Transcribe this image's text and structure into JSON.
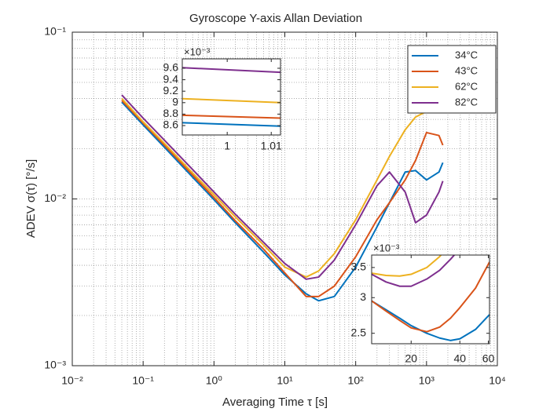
{
  "chart_data": [
    {
      "type": "line",
      "title": "Gyroscope Y-axis Allan Deviation",
      "xlabel": "Averaging Time τ [s]",
      "ylabel": "ADEV σ(τ) [°/s]",
      "xscale": "log",
      "yscale": "log",
      "grid": true,
      "minor_grid": true,
      "legend": "top-right",
      "xlim": [
        0.01,
        10000
      ],
      "ylim": [
        0.001,
        0.1
      ],
      "xticks": [
        {
          "value": 0.01,
          "label": "10⁻²"
        },
        {
          "value": 0.1,
          "label": "10⁻¹"
        },
        {
          "value": 1,
          "label": "10⁰"
        },
        {
          "value": 10,
          "label": "10¹"
        },
        {
          "value": 100,
          "label": "10²"
        },
        {
          "value": 1000,
          "label": "10³"
        },
        {
          "value": 10000,
          "label": "10⁴"
        }
      ],
      "yticks": [
        {
          "value": 0.001,
          "label": "10⁻³"
        },
        {
          "value": 0.01,
          "label": "10⁻²"
        },
        {
          "value": 0.1,
          "label": "10⁻¹"
        }
      ],
      "x": [
        0.05,
        0.1,
        0.2,
        0.5,
        1,
        2,
        5,
        10,
        20,
        30,
        50,
        100,
        200,
        300,
        500,
        700,
        1000,
        1500,
        1700
      ],
      "series": [
        {
          "name": "34°C",
          "color": "#0072BD",
          "values": [
            0.0381,
            0.0278,
            0.0204,
            0.0135,
            0.0099,
            0.0072,
            0.0048,
            0.0035,
            0.0027,
            0.00245,
            0.0026,
            0.0039,
            0.0068,
            0.0095,
            0.0145,
            0.0148,
            0.013,
            0.0145,
            0.0165
          ]
        },
        {
          "name": "43°C",
          "color": "#D95319",
          "values": [
            0.039,
            0.0285,
            0.021,
            0.0139,
            0.0102,
            0.0074,
            0.005,
            0.0036,
            0.0026,
            0.0026,
            0.003,
            0.0045,
            0.0075,
            0.0095,
            0.013,
            0.017,
            0.025,
            0.024,
            0.021
          ]
        },
        {
          "name": "62°C",
          "color": "#EDB120",
          "values": [
            0.04,
            0.029,
            0.0215,
            0.0143,
            0.0106,
            0.0078,
            0.0053,
            0.0039,
            0.0034,
            0.0037,
            0.0047,
            0.0075,
            0.013,
            0.018,
            0.026,
            0.031,
            0.0335,
            null,
            null
          ]
        },
        {
          "name": "82°C",
          "color": "#7E2F8E",
          "values": [
            0.042,
            0.0305,
            0.0225,
            0.015,
            0.011,
            0.0081,
            0.0055,
            0.0041,
            0.0033,
            0.0034,
            0.0043,
            0.007,
            0.012,
            0.0145,
            0.011,
            0.0072,
            0.008,
            0.011,
            0.0128
          ]
        }
      ]
    },
    {
      "type": "line",
      "xscale": "linear",
      "yscale": "linear",
      "exponent_label": "×10⁻³",
      "xlim": [
        0.9898,
        1.0121
      ],
      "ylim": [
        8.436,
        9.764
      ],
      "xticks": [
        1,
        1.01
      ],
      "yticks": [
        8.6,
        8.8,
        9,
        9.2,
        9.4,
        9.6
      ],
      "x": [
        0.9898,
        1.0121
      ],
      "series": [
        {
          "color": "#0072BD",
          "values": [
            8.65,
            8.59
          ]
        },
        {
          "color": "#D95319",
          "values": [
            8.78,
            8.73
          ]
        },
        {
          "color": "#EDB120",
          "values": [
            9.07,
            9.0
          ]
        },
        {
          "color": "#7E2F8E",
          "values": [
            9.61,
            9.53
          ]
        }
      ]
    },
    {
      "type": "line",
      "xscale": "log",
      "yscale": "log",
      "exponent_label": "×10⁻³",
      "xlim": [
        11.4,
        61
      ],
      "ylim": [
        2.37,
        3.73
      ],
      "xticks": [
        20,
        40,
        60
      ],
      "yticks": [
        2.5,
        3,
        3.5
      ],
      "x": [
        11.4,
        14,
        17,
        20,
        25,
        30,
        35,
        40,
        50,
        61
      ],
      "series": [
        {
          "color": "#0072BD",
          "values": [
            2.95,
            2.82,
            2.7,
            2.6,
            2.5,
            2.44,
            2.41,
            2.43,
            2.55,
            2.75
          ]
        },
        {
          "color": "#D95319",
          "values": [
            2.95,
            2.8,
            2.67,
            2.57,
            2.52,
            2.58,
            2.7,
            2.85,
            3.15,
            3.6
          ]
        },
        {
          "color": "#EDB120",
          "values": [
            3.4,
            3.36,
            3.35,
            3.38,
            3.5,
            3.7,
            3.95,
            null,
            null,
            null
          ]
        },
        {
          "color": "#7E2F8E",
          "values": [
            3.38,
            3.25,
            3.18,
            3.18,
            3.3,
            3.45,
            3.65,
            3.85,
            null,
            null
          ]
        }
      ]
    }
  ]
}
